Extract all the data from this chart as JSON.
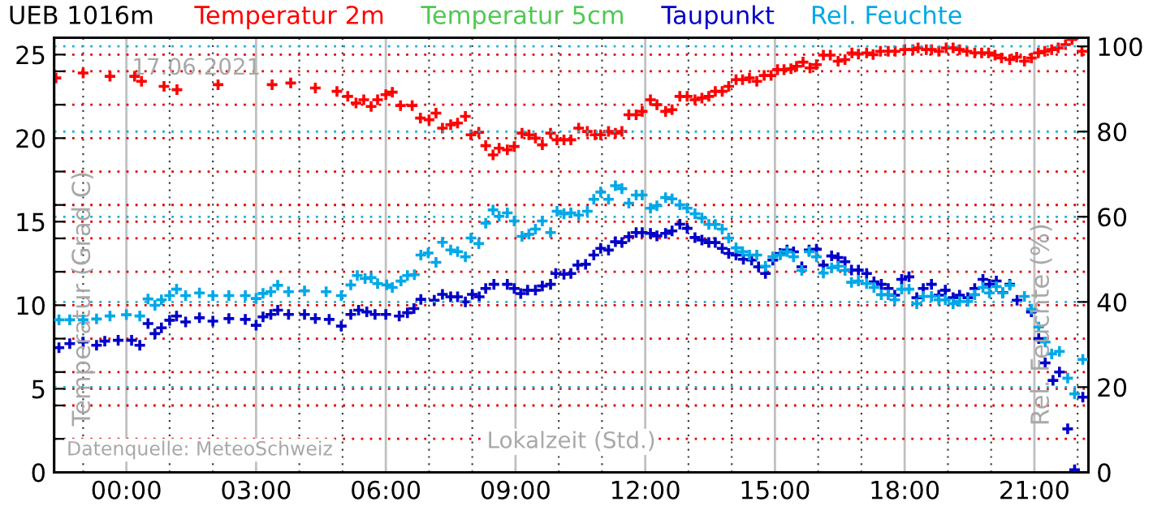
{
  "chart_data": {
    "type": "scatter",
    "title": "UEB 1016m",
    "xlabel": "Lokalzeit (Std.)",
    "ylabel": "Temperatur (Grad C)",
    "y2label": "Rel. Feuchte (%)",
    "annotations": [
      "17.06.2021",
      "Datenquelle: MeteoSchweiz"
    ],
    "xlim": [
      -1.67,
      22.25
    ],
    "ylim": [
      0,
      26
    ],
    "y2lim": [
      0,
      102
    ],
    "xticks": [
      {
        "value": -1,
        "label": null
      },
      {
        "value": 0,
        "label": "00:00"
      },
      {
        "value": 1,
        "label": null
      },
      {
        "value": 2,
        "label": null
      },
      {
        "value": 3,
        "label": "03:00"
      },
      {
        "value": 4,
        "label": null
      },
      {
        "value": 5,
        "label": null
      },
      {
        "value": 6,
        "label": "06:00"
      },
      {
        "value": 7,
        "label": null
      },
      {
        "value": 8,
        "label": null
      },
      {
        "value": 9,
        "label": "09:00"
      },
      {
        "value": 10,
        "label": null
      },
      {
        "value": 11,
        "label": null
      },
      {
        "value": 12,
        "label": "12:00"
      },
      {
        "value": 13,
        "label": null
      },
      {
        "value": 14,
        "label": null
      },
      {
        "value": 15,
        "label": "15:00"
      },
      {
        "value": 16,
        "label": null
      },
      {
        "value": 17,
        "label": null
      },
      {
        "value": 18,
        "label": "18:00"
      },
      {
        "value": 19,
        "label": null
      },
      {
        "value": 20,
        "label": null
      },
      {
        "value": 21,
        "label": "21:00"
      },
      {
        "value": 22,
        "label": null
      }
    ],
    "yticks": [
      0,
      {
        "value": 2,
        "label": null
      },
      {
        "value": 4,
        "label": null
      },
      5,
      {
        "value": 6,
        "label": null
      },
      {
        "value": 8,
        "label": null
      },
      10,
      {
        "value": 12,
        "label": null
      },
      {
        "value": 14,
        "label": null
      },
      15,
      {
        "value": 16,
        "label": null
      },
      {
        "value": 18,
        "label": null
      },
      20,
      {
        "value": 22,
        "label": null
      },
      {
        "value": 24,
        "label": null
      },
      25
    ],
    "y2ticks": [
      0,
      20,
      40,
      60,
      80,
      100
    ],
    "grid": true,
    "legend": "top",
    "marker": "cross",
    "series": [
      {
        "name": "Temperatur 2m",
        "color": "#ff0000",
        "x": [
          -1.63,
          -1.0,
          -0.38,
          0.19,
          0.35,
          0.87,
          1.17,
          2.12,
          3.37,
          3.8,
          4.37,
          4.87,
          5.12,
          5.31,
          5.49,
          5.66,
          5.81,
          6.0,
          6.15,
          6.34,
          6.61,
          6.8,
          7.0,
          7.16,
          7.31,
          7.5,
          7.66,
          7.84,
          7.97,
          8.15,
          8.31,
          8.48,
          8.62,
          8.81,
          8.97,
          9.15,
          9.31,
          9.46,
          9.62,
          9.81,
          9.96,
          10.12,
          10.28,
          10.46,
          10.66,
          10.84,
          10.97,
          11.15,
          11.31,
          11.46,
          11.62,
          11.79,
          11.93,
          12.12,
          12.27,
          12.47,
          12.62,
          12.8,
          12.97,
          13.15,
          13.31,
          13.47,
          13.62,
          13.78,
          13.93,
          14.1,
          14.25,
          14.41,
          14.58,
          14.75,
          14.91,
          15.06,
          15.21,
          15.37,
          15.5,
          15.65,
          15.81,
          15.96,
          16.12,
          16.28,
          16.46,
          16.62,
          16.78,
          16.93,
          17.12,
          17.27,
          17.44,
          17.62,
          17.78,
          18.0,
          18.19,
          18.31,
          18.5,
          18.62,
          18.79,
          18.96,
          19.12,
          19.27,
          19.44,
          19.62,
          19.78,
          19.94,
          20.09,
          20.24,
          20.43,
          20.59,
          20.77,
          20.93,
          21.09,
          21.24,
          21.4,
          21.55,
          21.72,
          21.87,
          22.1
        ],
        "values": [
          23.6,
          23.9,
          23.7,
          23.7,
          23.4,
          23.1,
          22.9,
          23.2,
          23.2,
          23.3,
          23.0,
          22.8,
          22.5,
          22.1,
          22.3,
          21.9,
          22.3,
          22.6,
          22.75,
          21.95,
          21.95,
          21.2,
          21.1,
          21.5,
          20.6,
          20.8,
          20.9,
          21.3,
          20.2,
          20.35,
          19.55,
          19.0,
          19.4,
          19.3,
          19.5,
          20.3,
          20.2,
          20.0,
          19.6,
          20.3,
          19.9,
          19.9,
          19.9,
          20.6,
          20.4,
          20.2,
          20.2,
          20.4,
          20.3,
          20.4,
          21.4,
          21.4,
          21.6,
          22.3,
          22.0,
          21.6,
          21.7,
          22.5,
          22.5,
          22.3,
          22.4,
          22.5,
          22.8,
          22.8,
          23.1,
          23.5,
          23.5,
          23.6,
          23.4,
          23.75,
          23.75,
          24.1,
          24.1,
          24.15,
          24.3,
          24.55,
          24.2,
          24.4,
          24.97,
          24.97,
          24.6,
          24.7,
          25.1,
          25.03,
          25.1,
          25.0,
          25.2,
          25.2,
          25.2,
          25.3,
          25.3,
          25.4,
          25.3,
          25.3,
          25.2,
          25.4,
          25.4,
          25.3,
          25.2,
          25.1,
          25.1,
          25.1,
          24.97,
          24.8,
          24.7,
          24.85,
          24.6,
          24.8,
          25.1,
          25.2,
          25.3,
          25.4,
          25.6,
          25.9,
          25.2
        ]
      },
      {
        "name": "Temperatur 5cm",
        "color": "#50c850"
      },
      {
        "name": "Taupunkt",
        "color": "#0000c8",
        "x": [
          -1.56,
          -1.31,
          -1.0,
          -0.69,
          -0.5,
          -0.19,
          0.12,
          0.31,
          0.5,
          0.66,
          0.81,
          1.0,
          1.16,
          1.37,
          1.69,
          2.0,
          2.37,
          2.75,
          3.0,
          3.16,
          3.34,
          3.5,
          3.75,
          4.12,
          4.37,
          4.69,
          4.97,
          5.19,
          5.37,
          5.56,
          5.75,
          6.0,
          6.31,
          6.5,
          6.65,
          6.81,
          7.12,
          7.31,
          7.5,
          7.66,
          7.84,
          8.0,
          8.16,
          8.31,
          8.5,
          8.81,
          8.97,
          9.12,
          9.28,
          9.46,
          9.62,
          9.81,
          9.93,
          10.12,
          10.28,
          10.44,
          10.62,
          10.81,
          10.97,
          11.15,
          11.31,
          11.46,
          11.62,
          11.79,
          11.93,
          12.12,
          12.27,
          12.47,
          12.62,
          12.8,
          12.97,
          13.15,
          13.31,
          13.47,
          13.62,
          13.78,
          13.93,
          14.1,
          14.27,
          14.46,
          14.62,
          14.78,
          14.95,
          15.12,
          15.28,
          15.43,
          15.62,
          15.79,
          15.96,
          16.12,
          16.31,
          16.46,
          16.62,
          16.77,
          16.93,
          17.12,
          17.29,
          17.46,
          17.62,
          17.77,
          17.93,
          18.1,
          18.28,
          18.43,
          18.62,
          18.79,
          18.94,
          19.12,
          19.27,
          19.46,
          19.62,
          19.81,
          19.96,
          20.12,
          20.27,
          20.43,
          20.6,
          20.93,
          21.1,
          21.25,
          21.43,
          21.58,
          21.77,
          21.93,
          22.12
        ],
        "values": [
          7.46,
          7.7,
          7.8,
          7.6,
          7.85,
          7.9,
          7.9,
          7.6,
          8.9,
          8.3,
          8.65,
          9.1,
          9.35,
          9.0,
          9.25,
          9.05,
          9.2,
          9.15,
          8.8,
          9.3,
          9.45,
          9.7,
          9.45,
          9.45,
          9.2,
          9.15,
          8.75,
          9.45,
          9.7,
          9.6,
          9.45,
          9.45,
          9.35,
          9.55,
          9.8,
          10.35,
          10.3,
          10.65,
          10.5,
          10.5,
          10.2,
          10.65,
          10.5,
          11.0,
          11.25,
          11.25,
          11.0,
          10.7,
          10.9,
          10.9,
          11.15,
          11.25,
          11.9,
          11.85,
          11.9,
          12.4,
          12.45,
          13.0,
          13.4,
          13.3,
          13.8,
          13.75,
          14.1,
          14.35,
          14.35,
          14.3,
          14.15,
          14.3,
          14.45,
          14.85,
          14.6,
          14.05,
          13.9,
          13.75,
          13.75,
          13.4,
          13.1,
          13.0,
          12.75,
          12.7,
          12.3,
          11.9,
          12.7,
          13.1,
          13.3,
          13.2,
          12.3,
          13.3,
          13.35,
          12.4,
          12.95,
          12.85,
          12.6,
          12.1,
          12.1,
          11.9,
          11.4,
          11.25,
          11.0,
          10.6,
          11.55,
          11.7,
          10.45,
          11.0,
          11.25,
          10.6,
          10.9,
          10.45,
          10.6,
          10.45,
          11.0,
          11.55,
          11.25,
          11.45,
          10.75,
          11.25,
          10.3,
          9.6,
          8.0,
          6.55,
          5.5,
          6.0,
          2.6,
          0.15,
          4.5
        ]
      },
      {
        "name": "Rel. Feuchte",
        "color": "#00a8e8",
        "axis": "y2",
        "x": [
          -1.56,
          -1.31,
          -1.0,
          -0.69,
          -0.38,
          0.0,
          0.31,
          0.5,
          0.66,
          0.81,
          1.0,
          1.16,
          1.37,
          1.69,
          2.0,
          2.37,
          2.75,
          3.0,
          3.16,
          3.34,
          3.5,
          3.75,
          4.12,
          4.62,
          4.97,
          5.19,
          5.34,
          5.52,
          5.66,
          5.81,
          6.02,
          6.15,
          6.35,
          6.5,
          6.66,
          6.81,
          6.98,
          7.16,
          7.31,
          7.5,
          7.66,
          7.84,
          7.97,
          8.15,
          8.31,
          8.48,
          8.62,
          8.81,
          8.97,
          9.15,
          9.31,
          9.46,
          9.62,
          9.81,
          9.96,
          10.12,
          10.28,
          10.46,
          10.66,
          10.81,
          10.97,
          11.15,
          11.31,
          11.46,
          11.62,
          11.79,
          11.93,
          12.12,
          12.27,
          12.47,
          12.62,
          12.8,
          12.97,
          13.15,
          13.31,
          13.47,
          13.62,
          13.78,
          13.93,
          14.1,
          14.25,
          14.41,
          14.58,
          14.78,
          14.95,
          15.12,
          15.28,
          15.43,
          15.62,
          15.79,
          15.96,
          16.12,
          16.31,
          16.46,
          16.62,
          16.77,
          16.93,
          17.12,
          17.29,
          17.46,
          17.62,
          17.77,
          17.93,
          18.1,
          18.28,
          18.43,
          18.62,
          18.79,
          18.94,
          19.12,
          19.27,
          19.46,
          19.62,
          19.81,
          19.96,
          20.12,
          20.27,
          20.43,
          20.77,
          20.93,
          21.1,
          21.25,
          21.4,
          21.58,
          21.77,
          21.93,
          22.12
        ],
        "values": [
          35.8,
          35.8,
          35.8,
          36.0,
          36.7,
          37.0,
          36.7,
          40.7,
          39.2,
          40.5,
          41.5,
          43.0,
          41.5,
          42.1,
          41.5,
          41.5,
          41.5,
          40.8,
          42.0,
          42.4,
          43.9,
          42.4,
          42.6,
          42.4,
          41.5,
          44.0,
          46.2,
          45.5,
          45.7,
          44.3,
          44.0,
          43.4,
          44.9,
          46.2,
          46.4,
          51.0,
          51.5,
          49.3,
          54.0,
          52.2,
          51.8,
          50.6,
          55.0,
          53.7,
          58.5,
          61.6,
          60.1,
          60.9,
          59.0,
          55.4,
          55.9,
          57.1,
          59.0,
          56.3,
          61.3,
          60.7,
          60.9,
          60.4,
          61.3,
          64.1,
          65.8,
          64.1,
          67.3,
          66.6,
          63.2,
          65.1,
          65.1,
          62.0,
          62.6,
          64.5,
          64.2,
          62.8,
          62.0,
          60.7,
          59.7,
          58.2,
          58.2,
          57.1,
          55.0,
          52.7,
          51.8,
          51.0,
          51.0,
          48.4,
          50.6,
          51.0,
          51.8,
          50.6,
          47.4,
          51.8,
          50.6,
          46.8,
          48.0,
          48.4,
          47.4,
          44.6,
          44.9,
          44.3,
          43.4,
          41.7,
          41.7,
          40.5,
          43.0,
          43.0,
          39.6,
          41.3,
          41.3,
          40.5,
          40.5,
          39.6,
          40.1,
          40.1,
          41.7,
          43.4,
          42.1,
          43.6,
          42.1,
          43.9,
          41.3,
          38.3,
          34.1,
          30.6,
          27.8,
          28.4,
          22.1,
          18.4,
          26.5
        ]
      }
    ]
  }
}
